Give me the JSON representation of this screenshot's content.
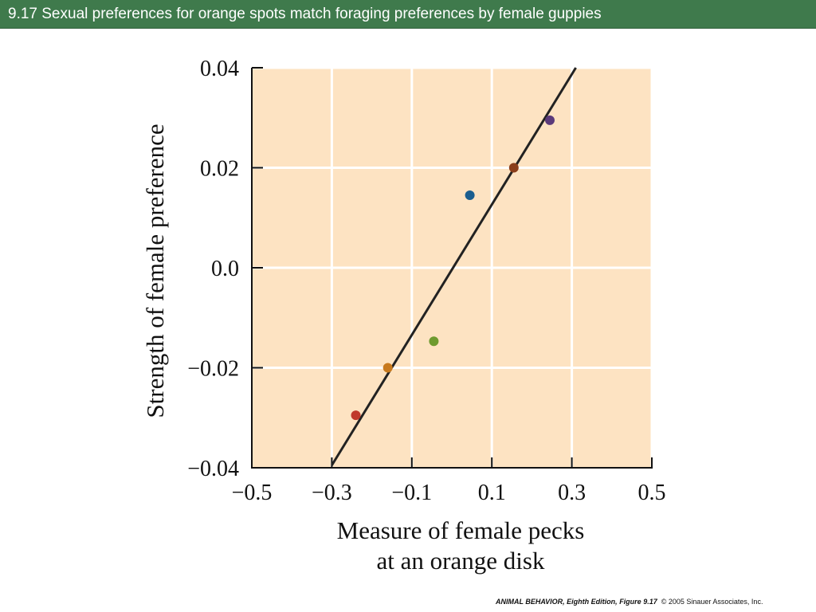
{
  "slide": {
    "title": "9.17  Sexual preferences for orange spots match foraging preferences by female guppies",
    "credit_book": "ANIMAL BEHAVIOR, Eighth Edition,",
    "credit_figure": "Figure 9.17",
    "credit_rest": "© 2005 Sinauer Associates, Inc."
  },
  "colors": {
    "title_bar": "#3f7a4c",
    "plot_background": "#fde3c2",
    "grid": "#ffffff",
    "line": "#222222"
  },
  "chart_data": {
    "type": "scatter",
    "title": "",
    "xlabel_lines": [
      "Measure of female pecks",
      "at an orange disk"
    ],
    "ylabel": "Strength of female preference",
    "xlim": [
      -0.5,
      0.5
    ],
    "ylim": [
      -0.04,
      0.04
    ],
    "x_ticks": [
      -0.5,
      -0.3,
      -0.1,
      0.1,
      0.3,
      0.5
    ],
    "x_tick_labels": [
      "−0.5",
      "−0.3",
      "−0.1",
      "0.1",
      "0.3",
      "0.5"
    ],
    "y_ticks": [
      0.04,
      0.02,
      0.0,
      -0.02,
      -0.04
    ],
    "y_tick_labels": [
      "0.04",
      "0.02",
      "0.0",
      "−0.02",
      "−0.04"
    ],
    "grid": true,
    "points": [
      {
        "x": -0.24,
        "y": -0.0295,
        "color": "#c0392b"
      },
      {
        "x": -0.16,
        "y": -0.02,
        "color": "#c87a1e"
      },
      {
        "x": -0.045,
        "y": -0.0147,
        "color": "#6e9a2f"
      },
      {
        "x": 0.045,
        "y": 0.0145,
        "color": "#1b5e8f"
      },
      {
        "x": 0.155,
        "y": 0.02,
        "color": "#8b3e1a"
      },
      {
        "x": 0.245,
        "y": 0.0295,
        "color": "#5b3a7a"
      }
    ],
    "fit_line": {
      "x": [
        -0.3,
        0.31
      ],
      "y": [
        -0.0395,
        0.04
      ]
    }
  }
}
